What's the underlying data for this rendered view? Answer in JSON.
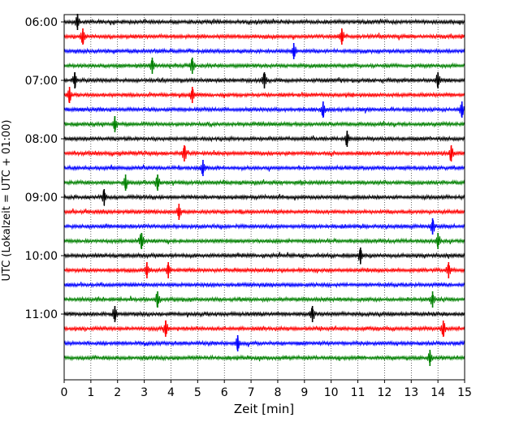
{
  "chart_data": {
    "type": "line",
    "xlabel": "Zeit  [min]",
    "ylabel": "UTC (Lokalzeit = UTC + 01:00)",
    "xlim": [
      0,
      15
    ],
    "x_ticks": [
      0,
      1,
      2,
      3,
      4,
      5,
      6,
      7,
      8,
      9,
      10,
      11,
      12,
      13,
      14,
      15
    ],
    "y_time_range": [
      "05:52:30",
      "12:07:30"
    ],
    "y_tick_labels": [
      "06:00",
      "07:00",
      "08:00",
      "09:00",
      "10:00",
      "11:00"
    ],
    "grid": "vertical dotted lines at each minute",
    "trace_interval_minutes": 15,
    "colors_cycle": [
      "#000000",
      "#ff0000",
      "#0000ff",
      "#008000"
    ],
    "traces": [
      {
        "start": "06:00",
        "color": "black",
        "events_min": [
          0.5
        ]
      },
      {
        "start": "06:15",
        "color": "red",
        "events_min": [
          0.7,
          10.4
        ]
      },
      {
        "start": "06:30",
        "color": "blue",
        "events_min": [
          8.6
        ]
      },
      {
        "start": "06:45",
        "color": "green",
        "events_min": [
          3.3,
          4.8
        ]
      },
      {
        "start": "07:00",
        "color": "black",
        "events_min": [
          0.4,
          7.5,
          14.0
        ]
      },
      {
        "start": "07:15",
        "color": "red",
        "events_min": [
          0.2,
          4.8
        ]
      },
      {
        "start": "07:30",
        "color": "blue",
        "events_min": [
          9.7,
          14.9
        ]
      },
      {
        "start": "07:45",
        "color": "green",
        "events_min": [
          1.9
        ]
      },
      {
        "start": "08:00",
        "color": "black",
        "events_min": [
          10.6
        ]
      },
      {
        "start": "08:15",
        "color": "red",
        "events_min": [
          4.5,
          14.5
        ]
      },
      {
        "start": "08:30",
        "color": "blue",
        "events_min": [
          5.2
        ]
      },
      {
        "start": "08:45",
        "color": "green",
        "events_min": [
          2.3,
          3.5
        ]
      },
      {
        "start": "09:00",
        "color": "black",
        "events_min": [
          1.5
        ]
      },
      {
        "start": "09:15",
        "color": "red",
        "events_min": [
          4.3
        ]
      },
      {
        "start": "09:30",
        "color": "blue",
        "events_min": [
          13.8
        ]
      },
      {
        "start": "09:45",
        "color": "green",
        "events_min": [
          2.9,
          14.0
        ]
      },
      {
        "start": "10:00",
        "color": "black",
        "events_min": [
          11.1
        ]
      },
      {
        "start": "10:15",
        "color": "red",
        "events_min": [
          3.1,
          3.9,
          14.4
        ]
      },
      {
        "start": "10:30",
        "color": "blue",
        "events_min": []
      },
      {
        "start": "10:45",
        "color": "green",
        "events_min": [
          3.5,
          13.8
        ]
      },
      {
        "start": "11:00",
        "color": "black",
        "events_min": [
          1.9,
          9.3
        ]
      },
      {
        "start": "11:15",
        "color": "red",
        "events_min": [
          3.8,
          14.2
        ]
      },
      {
        "start": "11:30",
        "color": "blue",
        "events_min": [
          6.5
        ]
      },
      {
        "start": "11:45",
        "color": "green",
        "events_min": [
          13.7
        ]
      }
    ]
  }
}
